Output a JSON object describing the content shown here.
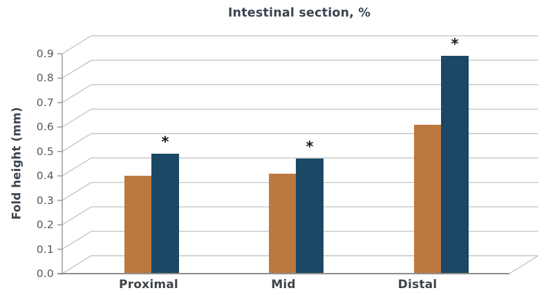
{
  "title": "Intestinal section, %",
  "y_axis": {
    "title": "Fold height (mm)"
  },
  "colors": {
    "bar_orange": "#bd7840",
    "bar_navy": "#1b4865",
    "gridline": "#c6c6c6",
    "axis_line": "#9a9a9a",
    "baseline": "#8d8d8d",
    "title_text": "#3a4550",
    "tick_text": "#55575b",
    "category_text": "#3f4347",
    "annotation_text": "#191919",
    "background": "#ffffff"
  },
  "chart_data": {
    "type": "bar",
    "style": "pseudo-3d-grouped-bars",
    "title": "Intestinal section, %",
    "xlabel": "",
    "ylabel": "Fold height (mm)",
    "categories": [
      "Proximal",
      "Mid",
      "Distal"
    ],
    "series": [
      {
        "name": "orange-bars",
        "color": "#bd7840",
        "values": [
          0.4,
          0.41,
          0.61
        ]
      },
      {
        "name": "navy-bars",
        "color": "#1b4865",
        "values": [
          0.49,
          0.47,
          0.89
        ]
      }
    ],
    "annotations": [
      {
        "category": "Proximal",
        "series": "navy-bars",
        "text": "*"
      },
      {
        "category": "Mid",
        "series": "navy-bars",
        "text": "*"
      },
      {
        "category": "Distal",
        "series": "navy-bars",
        "text": "*"
      }
    ],
    "ytick_labels": [
      "0.0",
      "0.1",
      "0.2",
      "0.3",
      "0.4",
      "0.5",
      "0.6",
      "0.7",
      "0.8",
      "0.9"
    ],
    "yticks": [
      0.0,
      0.1,
      0.2,
      0.3,
      0.4,
      0.5,
      0.6,
      0.7,
      0.8,
      0.9
    ],
    "ylim": [
      0.0,
      0.9
    ],
    "grid": true,
    "legend": false
  }
}
